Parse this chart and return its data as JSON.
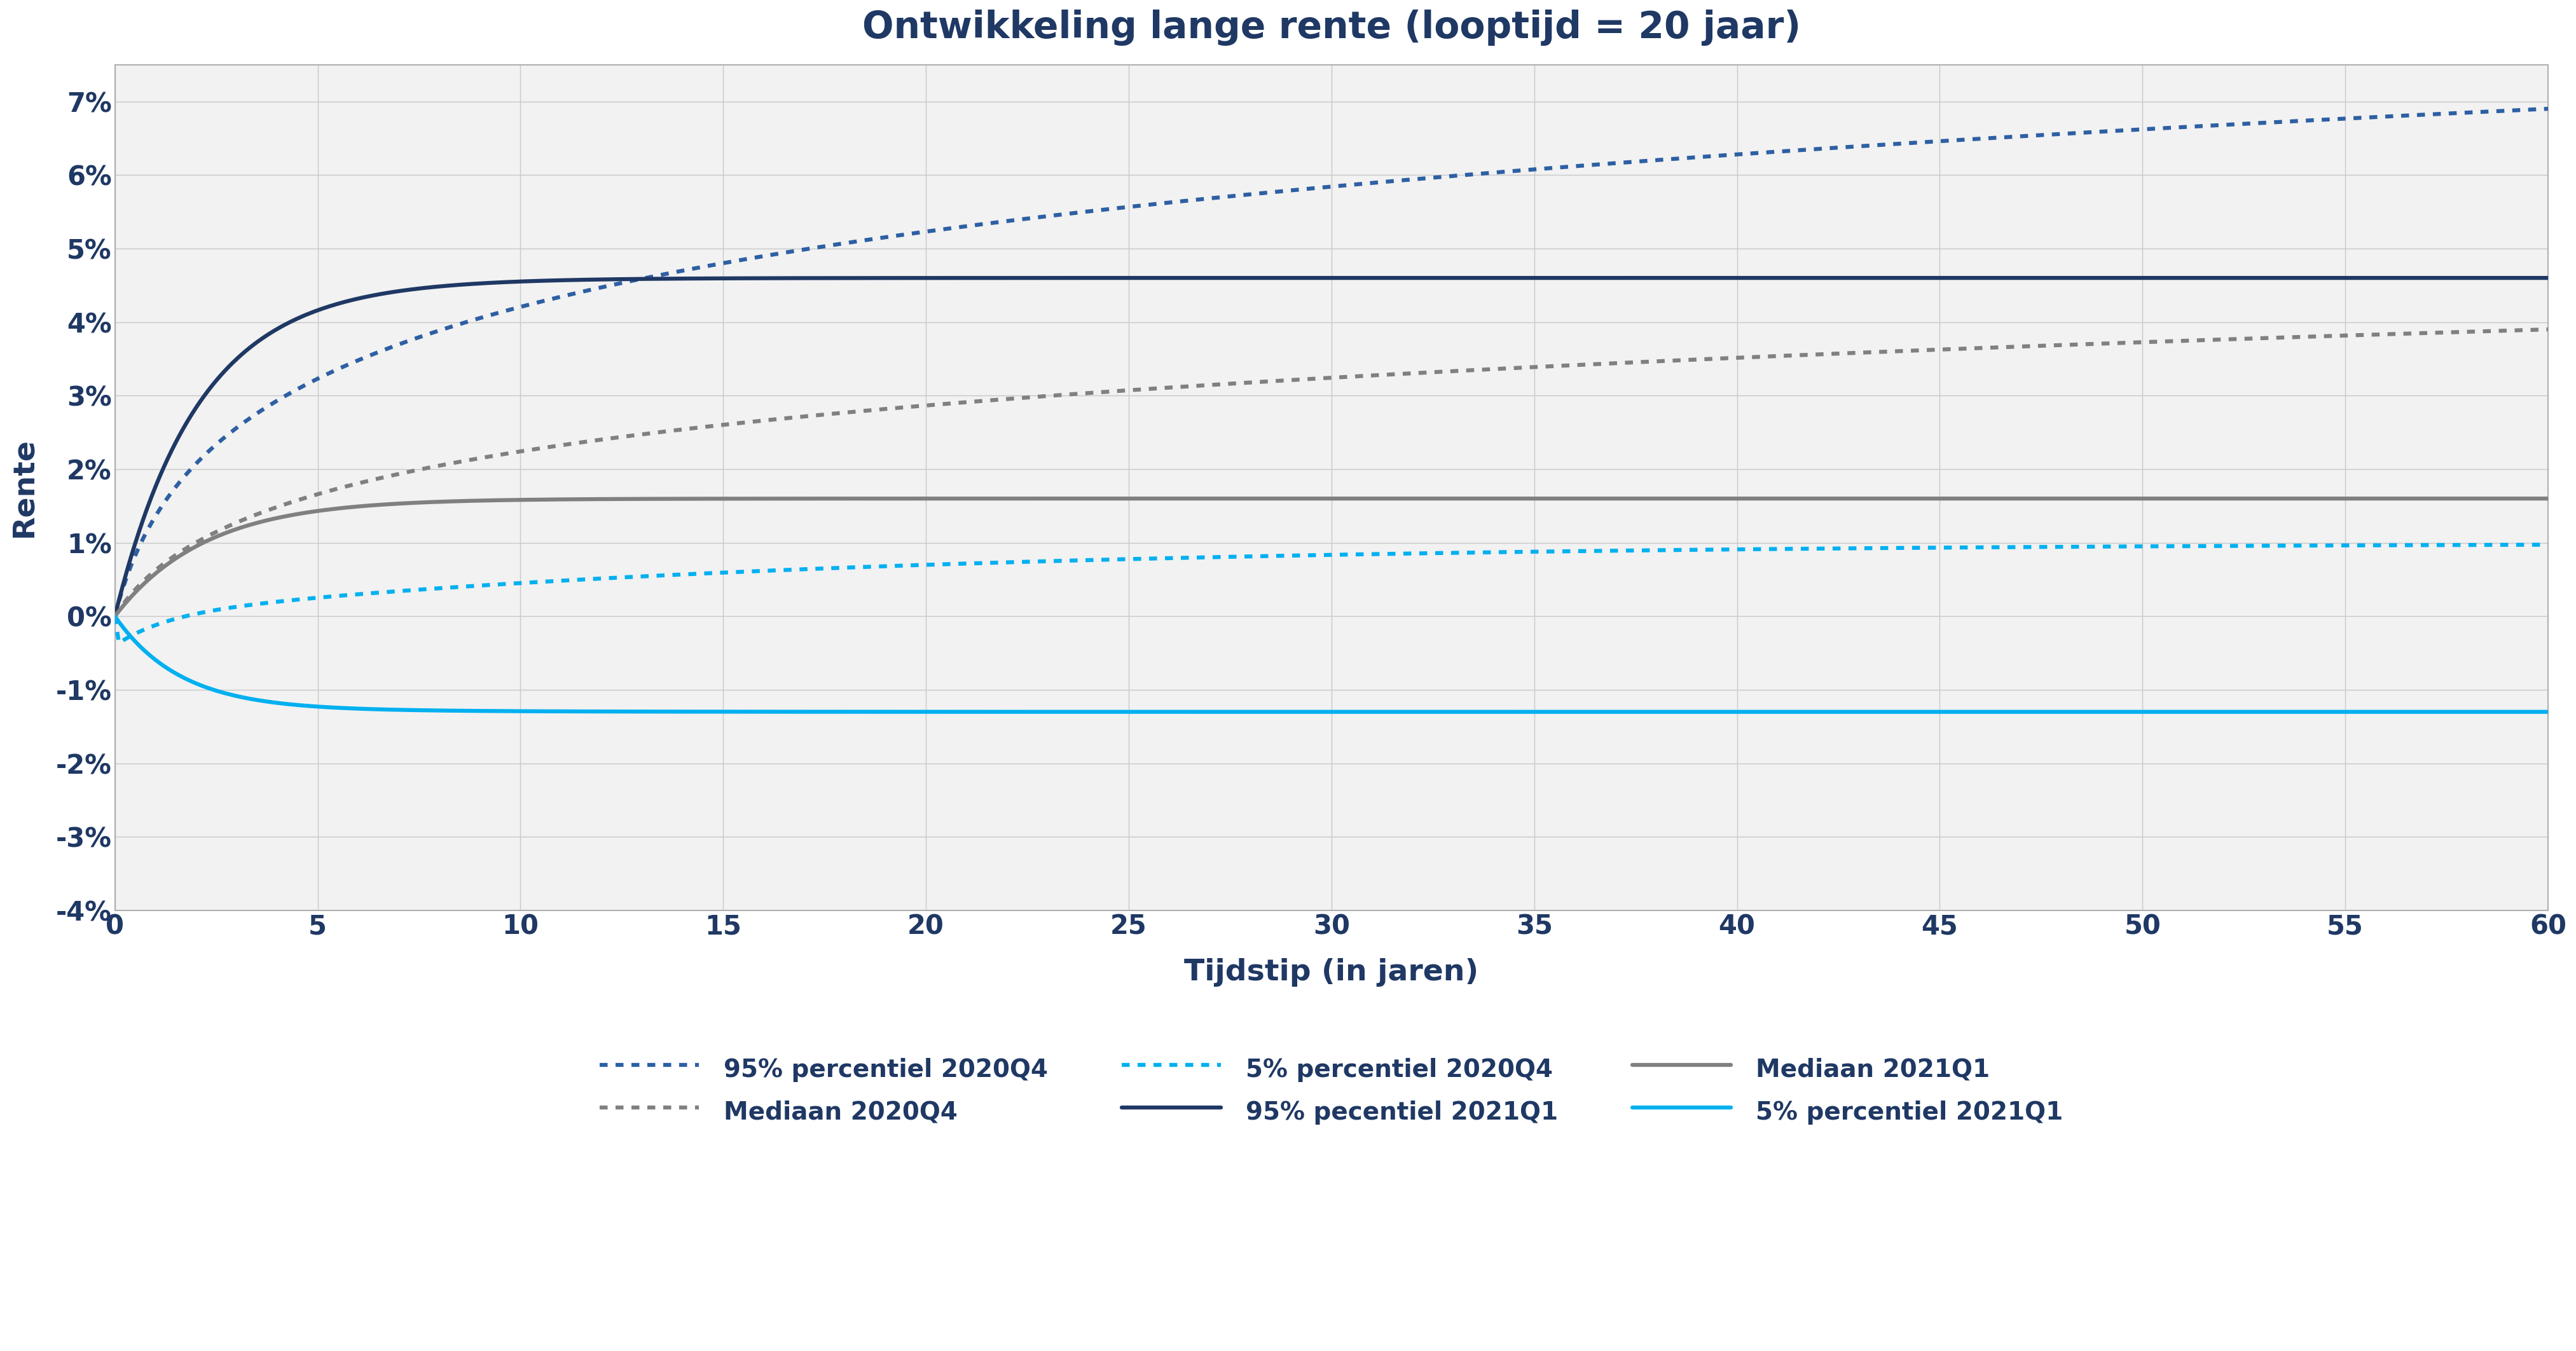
{
  "title": "Ontwikkeling lange rente (looptijd = 20 jaar)",
  "xlabel": "Tijdstip (in jaren)",
  "ylabel": "Rente",
  "xlim": [
    0,
    60
  ],
  "ylim": [
    -0.04,
    0.075
  ],
  "yticks": [
    -0.04,
    -0.03,
    -0.02,
    -0.01,
    0.0,
    0.01,
    0.02,
    0.03,
    0.04,
    0.05,
    0.06,
    0.07
  ],
  "ytick_labels": [
    "-4%",
    "-3%",
    "-2%",
    "-1%",
    "0%",
    "1%",
    "2%",
    "3%",
    "4%",
    "5%",
    "6%",
    "7%"
  ],
  "xticks": [
    0,
    5,
    10,
    15,
    20,
    25,
    30,
    35,
    40,
    45,
    50,
    55,
    60
  ],
  "plot_bg_color": "#f2f2f2",
  "background_color": "#ffffff",
  "grid_color": "#c8c8c8",
  "title_color": "#1f3864",
  "label_color": "#1f3864",
  "series": {
    "p95_2020Q4": {
      "label": "95% percentiel 2020Q4",
      "color": "#2e5fa3",
      "linestyle": "dotted",
      "linewidth": 4.5,
      "zorder": 3
    },
    "median_2020Q4": {
      "label": "Mediaan 2020Q4",
      "color": "#808080",
      "linestyle": "dotted",
      "linewidth": 4.5,
      "zorder": 3
    },
    "p5_2020Q4": {
      "label": "5% percentiel 2020Q4",
      "color": "#00b0f0",
      "linestyle": "dotted",
      "linewidth": 4.5,
      "zorder": 3
    },
    "p95_2021Q1": {
      "label": "95% pecentiel 2021Q1",
      "color": "#1f3864",
      "linestyle": "solid",
      "linewidth": 4.5,
      "zorder": 4
    },
    "median_2021Q1": {
      "label": "Mediaan 2021Q1",
      "color": "#808080",
      "linestyle": "solid",
      "linewidth": 4.5,
      "zorder": 4
    },
    "p5_2021Q1": {
      "label": "5% percentiel 2021Q1",
      "color": "#00b0f0",
      "linestyle": "solid",
      "linewidth": 4.5,
      "zorder": 4
    }
  },
  "legend_labels_row1": [
    "95% percentiel 2020Q4",
    "Mediaan 2020Q4",
    "5% percentiel 2020Q4"
  ],
  "legend_labels_row2": [
    "95% pecentiel 2021Q1",
    "Mediaan 2021Q1",
    "5% percentiel 2021Q1"
  ]
}
